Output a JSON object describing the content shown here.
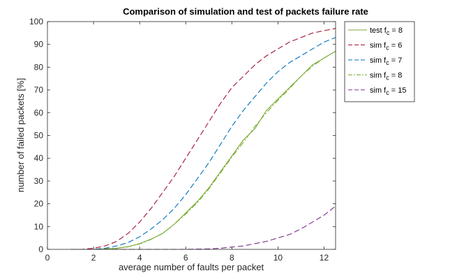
{
  "chart_data": {
    "type": "line",
    "title": "Comparison of simulation and test of packets failure rate",
    "xlabel": "average number of faults per packet",
    "ylabel": "number of failed packets [%]",
    "xlim": [
      0,
      12.5
    ],
    "ylim": [
      0,
      100
    ],
    "xticks": [
      0,
      2,
      4,
      6,
      8,
      10,
      12
    ],
    "yticks": [
      0,
      10,
      20,
      30,
      40,
      50,
      60,
      70,
      80,
      90,
      100
    ],
    "grid": false,
    "legend_position": "outside-top-right",
    "series": [
      {
        "name": "test f_c = 8",
        "label_main": "test f",
        "label_sub": "c",
        "label_tail": " = 8",
        "color": "#77AC30",
        "style": "solid",
        "x": [
          1,
          2,
          3,
          3.5,
          4,
          4.5,
          5,
          5.5,
          6,
          6.5,
          7,
          7.5,
          8,
          8.5,
          9,
          9.5,
          10,
          10.5,
          11,
          11.5,
          12,
          12.5
        ],
        "y": [
          0,
          0,
          0.5,
          1.2,
          2.5,
          4.5,
          7,
          11,
          16,
          21,
          27,
          34,
          41,
          48,
          53,
          61,
          66,
          71,
          76,
          81,
          84,
          87
        ]
      },
      {
        "name": "sim f_c = 6",
        "label_main": "sim f",
        "label_sub": "c",
        "label_tail": " = 6",
        "color": "#A2142F",
        "style": "dashed",
        "x": [
          1,
          1.5,
          2,
          2.5,
          3,
          3.5,
          4,
          4.5,
          5,
          5.5,
          6,
          6.5,
          7,
          7.5,
          8,
          8.5,
          9,
          9.5,
          10,
          10.5,
          11,
          11.5,
          12,
          12.5
        ],
        "y": [
          0,
          0,
          0.5,
          1.5,
          3.5,
          7,
          12,
          18,
          25,
          32,
          40,
          48,
          56,
          64,
          71,
          76,
          81,
          85,
          88,
          91,
          93,
          95,
          96,
          97
        ]
      },
      {
        "name": "sim f_c = 7",
        "label_main": "sim f",
        "label_sub": "c",
        "label_tail": " = 7",
        "color": "#0072BD",
        "style": "dashed",
        "x": [
          1,
          1.5,
          2,
          2.5,
          3,
          3.5,
          4,
          4.5,
          5,
          5.5,
          6,
          6.5,
          7,
          7.5,
          8,
          8.5,
          9,
          9.5,
          10,
          10.5,
          11,
          11.5,
          12,
          12.5
        ],
        "y": [
          0,
          0,
          0,
          0.5,
          1.5,
          3,
          5.5,
          9,
          13,
          18,
          24,
          31,
          38,
          46,
          54,
          61,
          67,
          73,
          78,
          82,
          85,
          88,
          91,
          93
        ]
      },
      {
        "name": "sim f_c = 8",
        "label_main": "sim f",
        "label_sub": "c",
        "label_tail": " = 8",
        "color": "#77AC30",
        "style": "dashdot",
        "x": [
          1,
          2,
          3,
          3.5,
          4,
          4.5,
          5,
          5.5,
          6,
          6.5,
          7,
          7.5,
          8,
          8.5,
          9,
          9.5,
          10,
          10.5,
          11,
          11.5,
          12,
          12.5
        ],
        "y": [
          0,
          0,
          0.4,
          1.1,
          2.4,
          4.4,
          7,
          11,
          15.5,
          20.5,
          26.5,
          33.5,
          40.5,
          47,
          54,
          60,
          65.5,
          70.5,
          76,
          80.5,
          84,
          87
        ]
      },
      {
        "name": "sim f_c = 15",
        "label_main": "sim f",
        "label_sub": "c",
        "label_tail": " = 15",
        "color": "#7E2F8E",
        "style": "dashed",
        "x": [
          1,
          2,
          3,
          4,
          5,
          6,
          7,
          7.5,
          8,
          8.5,
          9,
          9.5,
          10,
          10.5,
          11,
          11.5,
          12,
          12.5
        ],
        "y": [
          0,
          0,
          0,
          0,
          0,
          0,
          0.2,
          0.5,
          1,
          1.5,
          2.5,
          3.5,
          5,
          6.5,
          9,
          12,
          15,
          19
        ]
      }
    ]
  }
}
